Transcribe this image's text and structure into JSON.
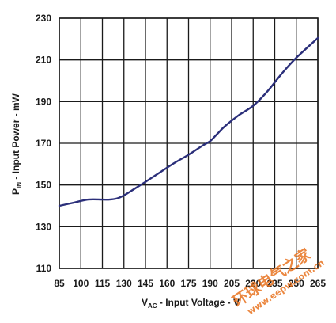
{
  "chart_data": {
    "type": "line",
    "title": "",
    "xlabel": {
      "main": "V",
      "sub": "AC",
      "rest": " - Input Voltage - V"
    },
    "ylabel": {
      "main": "P",
      "sub": "IN",
      "rest": " - Input Power - mW"
    },
    "xlim": [
      85,
      265
    ],
    "ylim": [
      110,
      230
    ],
    "x_ticks": [
      "85",
      "100",
      "115",
      "130",
      "145",
      "160",
      "175",
      "190",
      "205",
      "220",
      "235",
      "250",
      "265"
    ],
    "y_ticks": [
      "110",
      "130",
      "150",
      "170",
      "190",
      "210",
      "230"
    ],
    "grid": true,
    "series": [
      {
        "color": "#2b2f7a",
        "x": [
          85,
          95,
          105,
          115,
          120,
          125,
          130,
          137,
          145,
          155,
          165,
          175,
          185,
          190,
          195,
          200,
          210,
          220,
          230,
          240,
          250,
          265
        ],
        "y": [
          140,
          141.5,
          143,
          143,
          143,
          143.5,
          145,
          148,
          151.5,
          156,
          160.5,
          164.5,
          169,
          171,
          174.5,
          178,
          183.5,
          188,
          195,
          203.5,
          211,
          220.5
        ]
      }
    ]
  },
  "watermark": {
    "line1": "环球电气之家",
    "line2": "www.eepw.com.cn",
    "color": "#e8731f"
  }
}
